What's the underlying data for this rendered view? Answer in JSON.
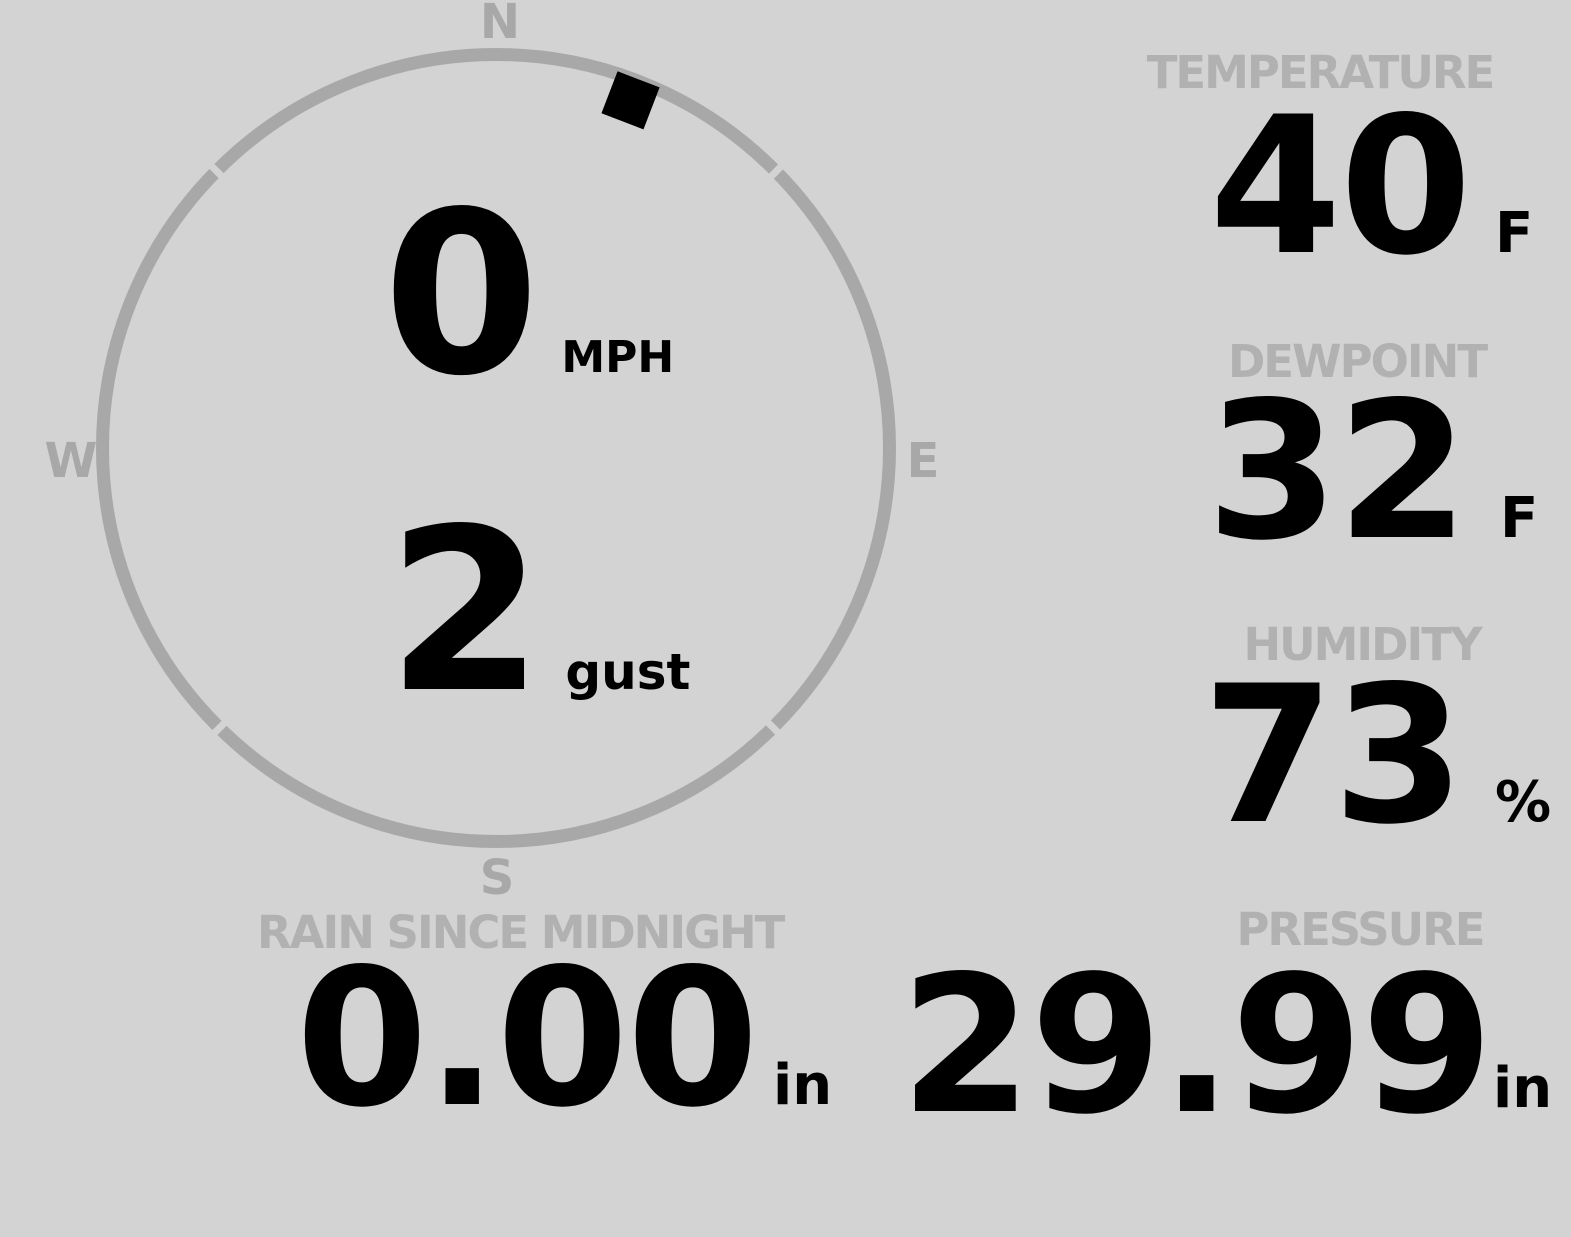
{
  "app": {
    "background_color": "#d3d3d3",
    "gauge_gray": "#a8a8a8",
    "label_gray": "#b1b1b1",
    "value_black": "#000000"
  },
  "wind": {
    "speed_value": "0",
    "speed_unit": "MPH",
    "gust_value": "2",
    "gust_label": "gust",
    "direction_degrees": 21,
    "compass": {
      "north": "N",
      "south": "S",
      "east": "E",
      "west": "W"
    }
  },
  "metrics": {
    "temperature": {
      "label": "TEMPERATURE",
      "value": "40",
      "unit": "F"
    },
    "dewpoint": {
      "label": "DEWPOINT",
      "value": "32",
      "unit": "F"
    },
    "humidity": {
      "label": "HUMIDITY",
      "value": "73",
      "unit": "%"
    },
    "pressure": {
      "label": "PRESSURE",
      "value": "29.99",
      "unit": "in"
    },
    "rain": {
      "label": "RAIN SINCE MIDNIGHT",
      "value": "0.00",
      "unit": "in"
    }
  }
}
